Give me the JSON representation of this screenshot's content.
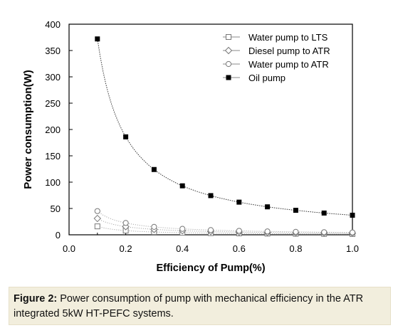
{
  "chart_data": {
    "type": "line",
    "title": "",
    "xlabel": "Efficiency of Pump(%)",
    "ylabel": "Power consumption(W)",
    "xlim": [
      0.0,
      1.0
    ],
    "ylim": [
      0,
      400
    ],
    "x_ticks": [
      "0.0",
      "0.2",
      "0.4",
      "0.6",
      "0.8",
      "1.0"
    ],
    "y_ticks": [
      "0",
      "50",
      "100",
      "150",
      "200",
      "250",
      "300",
      "350",
      "400"
    ],
    "legend_position": "top-right",
    "x": [
      0.1,
      0.2,
      0.3,
      0.4,
      0.5,
      0.6,
      0.7,
      0.8,
      0.9,
      1.0
    ],
    "series": [
      {
        "name": "Water pump to LTS",
        "marker": "open-square",
        "values": [
          16,
          8,
          5.3,
          4,
          3.2,
          2.7,
          2.3,
          2,
          1.8,
          1.6
        ]
      },
      {
        "name": "Diesel pump to ATR",
        "marker": "open-diamond",
        "values": [
          31,
          15.5,
          10.3,
          7.8,
          6.2,
          5.2,
          4.4,
          3.9,
          3.4,
          3.1
        ]
      },
      {
        "name": "Water pump to ATR",
        "marker": "open-circle",
        "values": [
          45,
          22.5,
          15,
          11.3,
          9,
          7.5,
          6.4,
          5.6,
          5,
          4.5
        ]
      },
      {
        "name": "Oil pump",
        "marker": "filled-square",
        "values": [
          372,
          186,
          124,
          93,
          74.4,
          62,
          53.1,
          46.5,
          41.3,
          37.2
        ]
      }
    ]
  },
  "caption": {
    "label": "Figure 2:",
    "text": " Power consumption of pump with mechanical efficiency in the ATR integrated 5kW HT-PEFC systems."
  }
}
